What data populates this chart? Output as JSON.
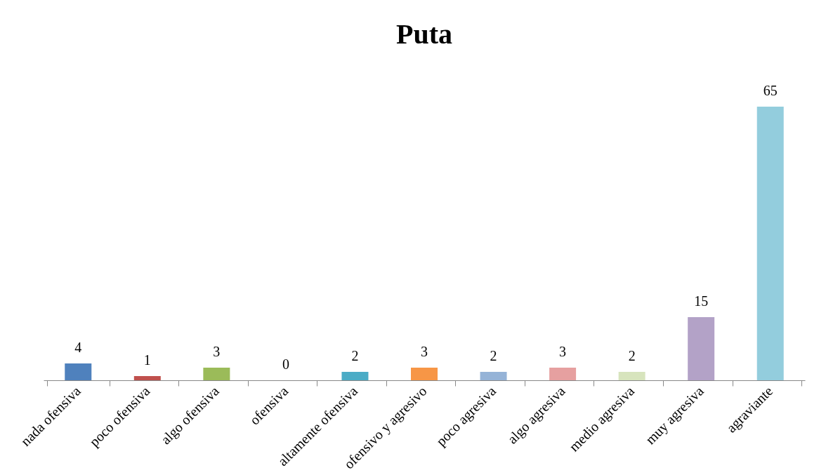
{
  "chart_data": {
    "type": "bar",
    "title": "Puta",
    "categories": [
      "nada ofensiva",
      "poco ofensiva",
      "algo ofensiva",
      "ofensiva",
      "altamente ofensiva",
      "ofensivo y agresivo",
      "poco agresiva",
      "algo agresiva",
      "medio agresiva",
      "muy agresiva",
      "agraviante"
    ],
    "values": [
      4,
      1,
      3,
      0,
      2,
      3,
      2,
      3,
      2,
      15,
      65
    ],
    "colors": [
      "#4f81bd",
      "#c0504d",
      "#9bbb59",
      "#8064a2",
      "#4bacc6",
      "#f79646",
      "#95b3d7",
      "#e6a0a0",
      "#d7e4bd",
      "#b3a2c7",
      "#93cddd"
    ],
    "data_labels": true
  }
}
